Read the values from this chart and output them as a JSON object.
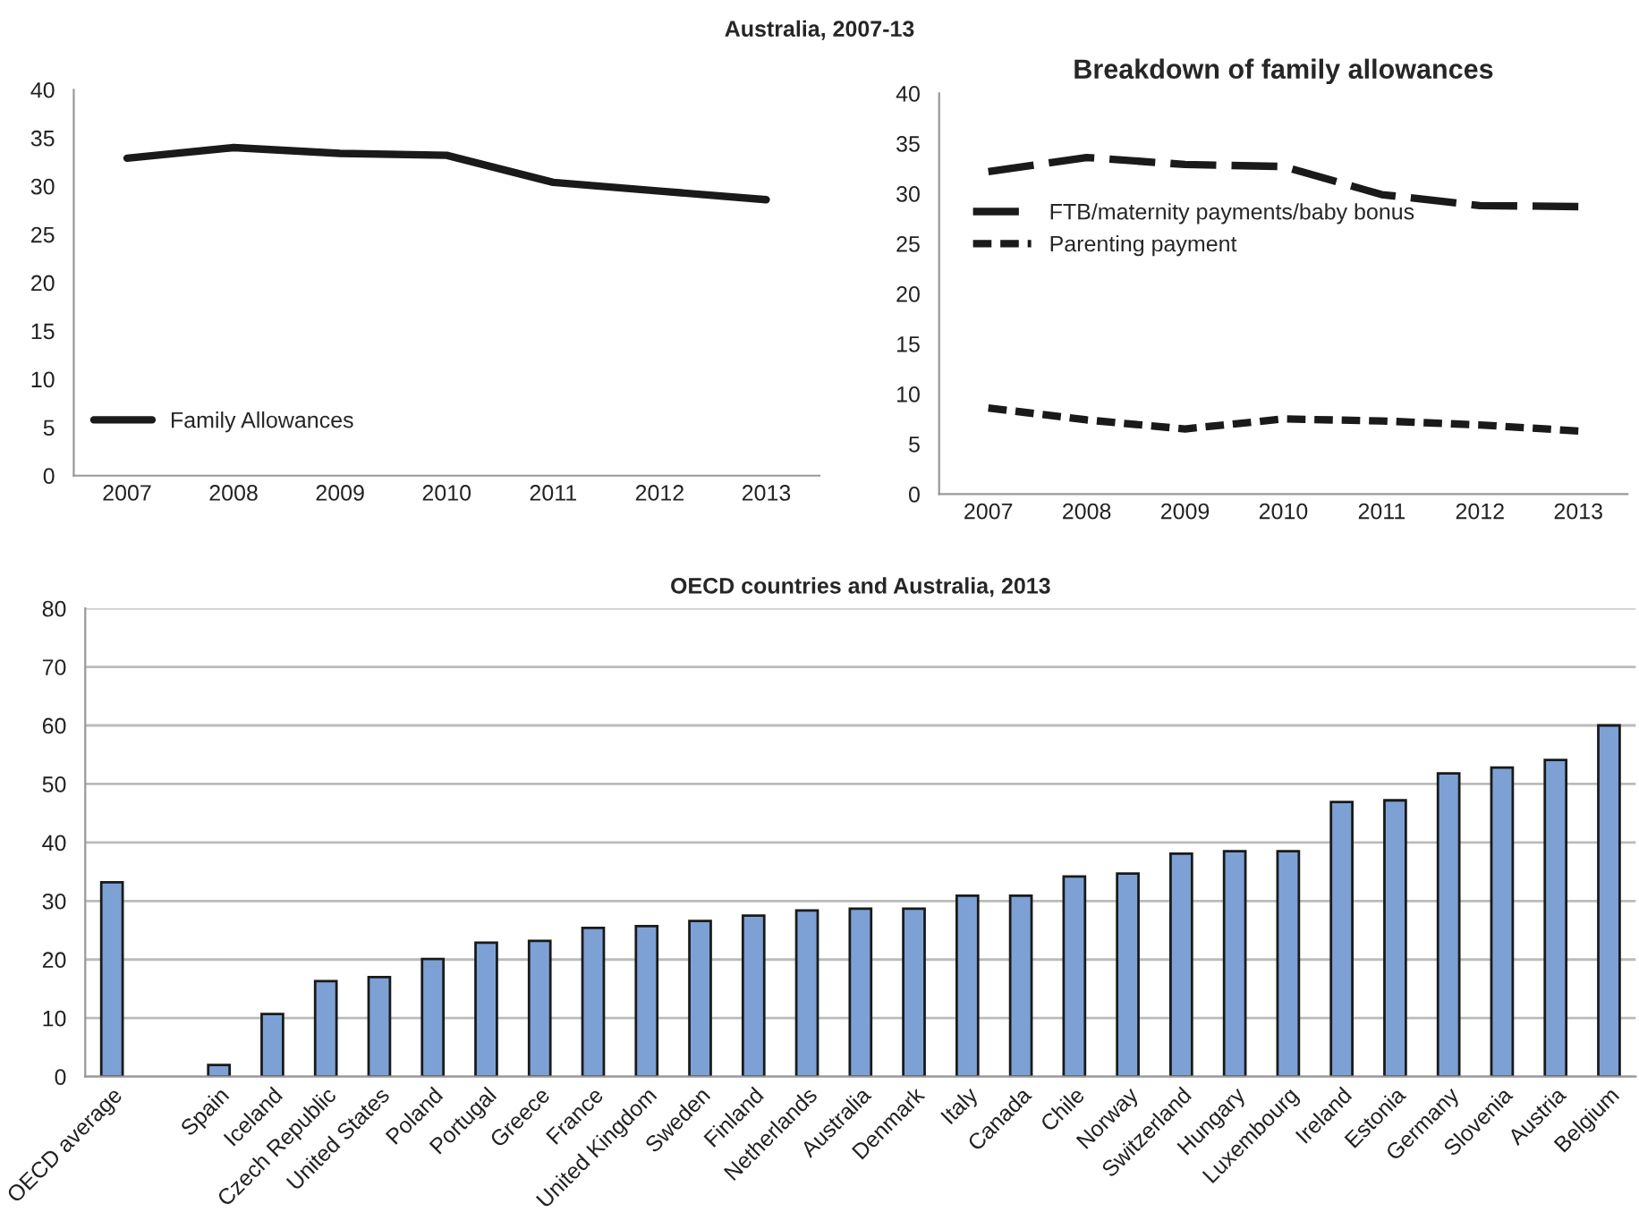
{
  "chart_data": [
    {
      "type": "line",
      "title": "Australia, 2007-13",
      "categories": [
        "2007",
        "2008",
        "2009",
        "2010",
        "2011",
        "2012",
        "2013"
      ],
      "series": [
        {
          "name": "Family Allowances",
          "color": "#1a1a1a",
          "line_style": "solid",
          "values": [
            32.9,
            34.0,
            33.4,
            33.2,
            30.4,
            29.5,
            28.6
          ]
        }
      ],
      "ylim": [
        0,
        40
      ],
      "yticks": [
        0,
        5,
        10,
        15,
        20,
        25,
        30,
        35,
        40
      ],
      "grid": false,
      "legend": "bottom left",
      "marker": "none"
    },
    {
      "type": "line",
      "title": "Breakdown of family allowances",
      "categories": [
        "2007",
        "2008",
        "2009",
        "2010",
        "2011",
        "2012",
        "2013"
      ],
      "series": [
        {
          "name": "FTB/maternity payments/baby bonus",
          "color": "#1a1a1a",
          "line_style": "dashed",
          "values": [
            32.2,
            33.6,
            32.9,
            32.7,
            29.9,
            28.8,
            28.7
          ]
        },
        {
          "name": "Parenting payment",
          "color": "#1a1a1a",
          "line_style": "dotted",
          "values": [
            8.6,
            7.4,
            6.5,
            7.5,
            7.3,
            6.9,
            6.3
          ]
        }
      ],
      "ylim": [
        0,
        40
      ],
      "yticks": [
        0,
        5,
        10,
        15,
        20,
        25,
        30,
        35,
        40
      ],
      "grid": false,
      "legend": "left",
      "marker": "none"
    },
    {
      "type": "bar",
      "title": "OECD countries and Australia, 2013",
      "categories": [
        "OECD average",
        null,
        "Spain",
        "Iceland",
        "Czech Republic",
        "United States",
        "Poland",
        "Portugal",
        "Greece",
        "France",
        "United Kingdom",
        "Sweden",
        "Finland",
        "Netherlands",
        "Australia",
        "Denmark",
        "Italy",
        "Canada",
        "Chile",
        "Norway",
        "Switzerland",
        "Hungary",
        "Luxembourg",
        "Ireland",
        "Estonia",
        "Germany",
        "Slovenia",
        "Austria",
        "Belgium"
      ],
      "values": [
        33.2,
        null,
        2.0,
        10.7,
        16.3,
        17.0,
        20.1,
        22.9,
        23.2,
        25.4,
        25.7,
        26.6,
        27.5,
        28.4,
        28.7,
        28.7,
        30.9,
        30.9,
        34.2,
        34.7,
        38.1,
        38.5,
        38.5,
        46.9,
        47.2,
        51.8,
        52.8,
        54.1,
        60.0
      ],
      "color": "#7da1d4",
      "ylim": [
        0,
        80
      ],
      "yticks": [
        0,
        10,
        20,
        30,
        40,
        50,
        60,
        70,
        80
      ],
      "grid": "y",
      "legend": false
    }
  ]
}
